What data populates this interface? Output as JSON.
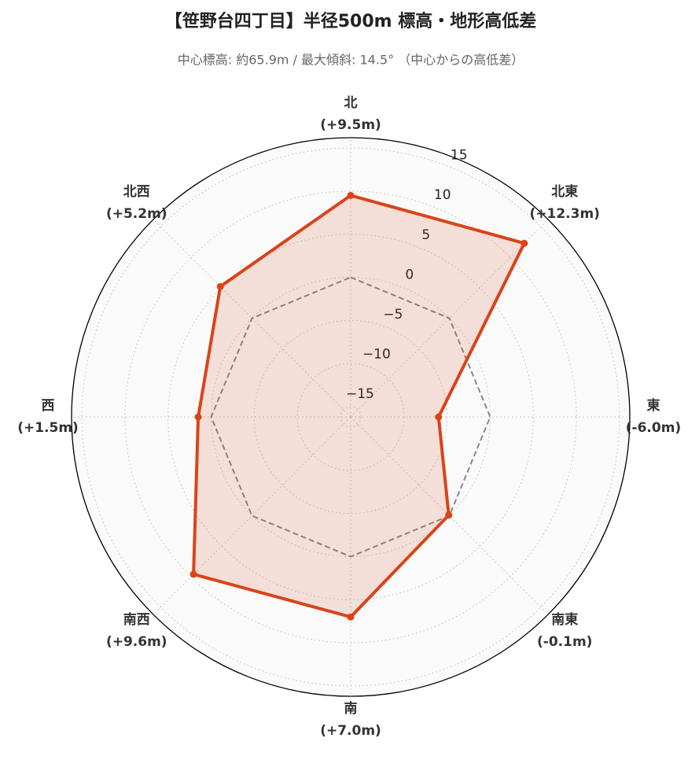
{
  "chart_data": {
    "type": "radar",
    "title": "【笹野台四丁目】半径500m 標高・地形高低差",
    "subtitle": "中心標高: 約65.9m / 最大傾斜: 14.5° （中心からの高低差）",
    "categories": [
      "北",
      "北東",
      "東",
      "南東",
      "南",
      "南西",
      "西",
      "北西"
    ],
    "values": [
      9.5,
      12.3,
      -6.0,
      -0.1,
      7.0,
      9.6,
      1.5,
      5.2
    ],
    "value_labels": [
      "(+9.5m)",
      "(+12.3m)",
      "(-6.0m)",
      "(-0.1m)",
      "(+7.0m)",
      "(+9.6m)",
      "(+1.5m)",
      "(+5.2m)"
    ],
    "color": "#d9441a",
    "reference": 0,
    "ylim": [
      -16.2,
      16.2
    ],
    "yticks": [
      {
        "value": -15,
        "label": "−15"
      },
      {
        "value": -10,
        "label": "−10"
      },
      {
        "value": -5,
        "label": "−5"
      },
      0,
      5,
      10,
      15
    ],
    "grid": true
  }
}
